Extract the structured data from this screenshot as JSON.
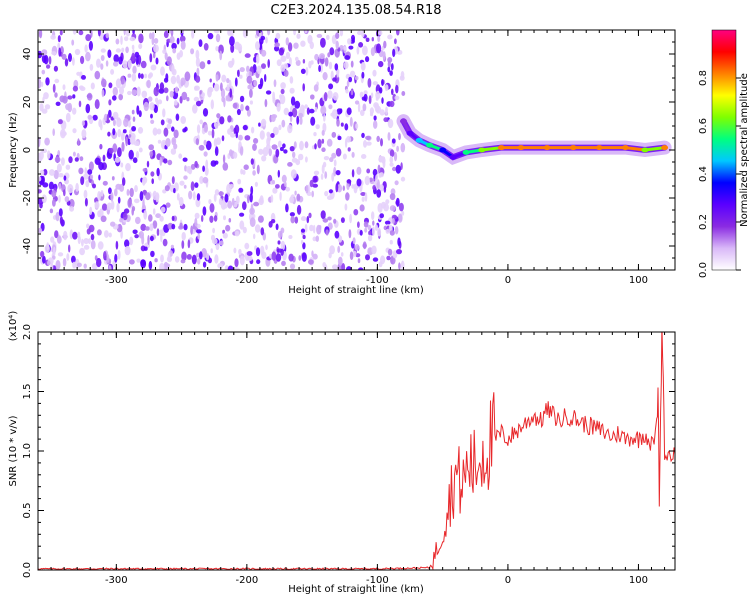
{
  "title": "C2E3.2024.135.08.54.R18",
  "chart_data": [
    {
      "type": "heatmap",
      "xlabel": "Height of straight line (km)",
      "ylabel": "Frequency (Hz)",
      "xlim": [
        -360,
        128
      ],
      "ylim": [
        -50,
        50
      ],
      "x_ticks": [
        -300,
        -200,
        -100,
        0,
        100
      ],
      "y_ticks": [
        -40,
        -20,
        0,
        20,
        40
      ],
      "colorbar": {
        "label": "Normalized spectral amplitude",
        "range": [
          0.0,
          1.0
        ],
        "ticks": [
          "0.0",
          "0.2",
          "0.4",
          "0.6",
          "0.8"
        ],
        "colors": [
          "#ffffff",
          "#d9b8f8",
          "#8a2be2",
          "#5a00ff",
          "#0000ff",
          "#00c8ff",
          "#00ff80",
          "#7fff00",
          "#ffff00",
          "#ff8000",
          "#ff0000",
          "#ff0080"
        ]
      },
      "noise_region": {
        "x_range": [
          -360,
          -80
        ],
        "y_range": [
          -50,
          50
        ],
        "amplitude": 0.1
      },
      "signal_track": [
        {
          "x": -80,
          "y": 12,
          "amplitude": 0.25
        },
        {
          "x": -75,
          "y": 7,
          "amplitude": 0.35
        },
        {
          "x": -68,
          "y": 4,
          "amplitude": 0.5
        },
        {
          "x": -60,
          "y": 2,
          "amplitude": 0.55
        },
        {
          "x": -50,
          "y": 0,
          "amplitude": 0.45
        },
        {
          "x": -42,
          "y": -3,
          "amplitude": 0.35
        },
        {
          "x": -32,
          "y": -1,
          "amplitude": 0.55
        },
        {
          "x": -20,
          "y": 0,
          "amplitude": 0.7
        },
        {
          "x": -5,
          "y": 1,
          "amplitude": 0.85
        },
        {
          "x": 10,
          "y": 1,
          "amplitude": 0.85
        },
        {
          "x": 30,
          "y": 1,
          "amplitude": 0.9
        },
        {
          "x": 50,
          "y": 1,
          "amplitude": 0.9
        },
        {
          "x": 70,
          "y": 1,
          "amplitude": 0.9
        },
        {
          "x": 90,
          "y": 1,
          "amplitude": 0.85
        },
        {
          "x": 105,
          "y": 0,
          "amplitude": 0.7
        },
        {
          "x": 120,
          "y": 1,
          "amplitude": 0.85
        }
      ]
    },
    {
      "type": "line",
      "xlabel": "Height of straight line (km)",
      "ylabel": "SNR (10 * v/v)",
      "yscale_label": "(x10⁴)",
      "xlim": [
        -360,
        128
      ],
      "ylim": [
        0.0,
        2.0
      ],
      "x_ticks": [
        -300,
        -200,
        -100,
        0,
        100
      ],
      "y_ticks": [
        "0.0",
        "0.5",
        "1.0",
        "1.5",
        "2.0"
      ],
      "color": "#e8282b",
      "series": [
        {
          "x": [
            -360,
            -200,
            -100,
            -60,
            -55,
            -50,
            -45,
            -40,
            -35,
            -30,
            -25,
            -20,
            -15,
            -10,
            -5,
            0,
            5,
            10,
            15,
            20,
            25,
            30,
            35,
            40,
            45,
            50,
            55,
            60,
            65,
            70,
            75,
            80,
            85,
            90,
            95,
            100,
            105,
            110,
            112,
            114,
            115,
            116,
            117,
            118,
            119,
            120,
            122,
            125,
            128
          ],
          "y": [
            0.01,
            0.01,
            0.01,
            0.02,
            0.15,
            0.35,
            0.6,
            0.8,
            0.7,
            0.9,
            0.85,
            1.0,
            1.05,
            1.1,
            1.15,
            1.1,
            1.15,
            1.2,
            1.25,
            1.3,
            1.25,
            1.35,
            1.3,
            1.25,
            1.3,
            1.28,
            1.25,
            1.22,
            1.2,
            1.18,
            1.15,
            1.12,
            1.15,
            1.1,
            1.12,
            1.1,
            1.15,
            1.05,
            1.1,
            1.2,
            1.5,
            0.6,
            1.3,
            2.0,
            1.7,
            0.95,
            0.98,
            0.97,
            0.97
          ]
        }
      ]
    }
  ]
}
